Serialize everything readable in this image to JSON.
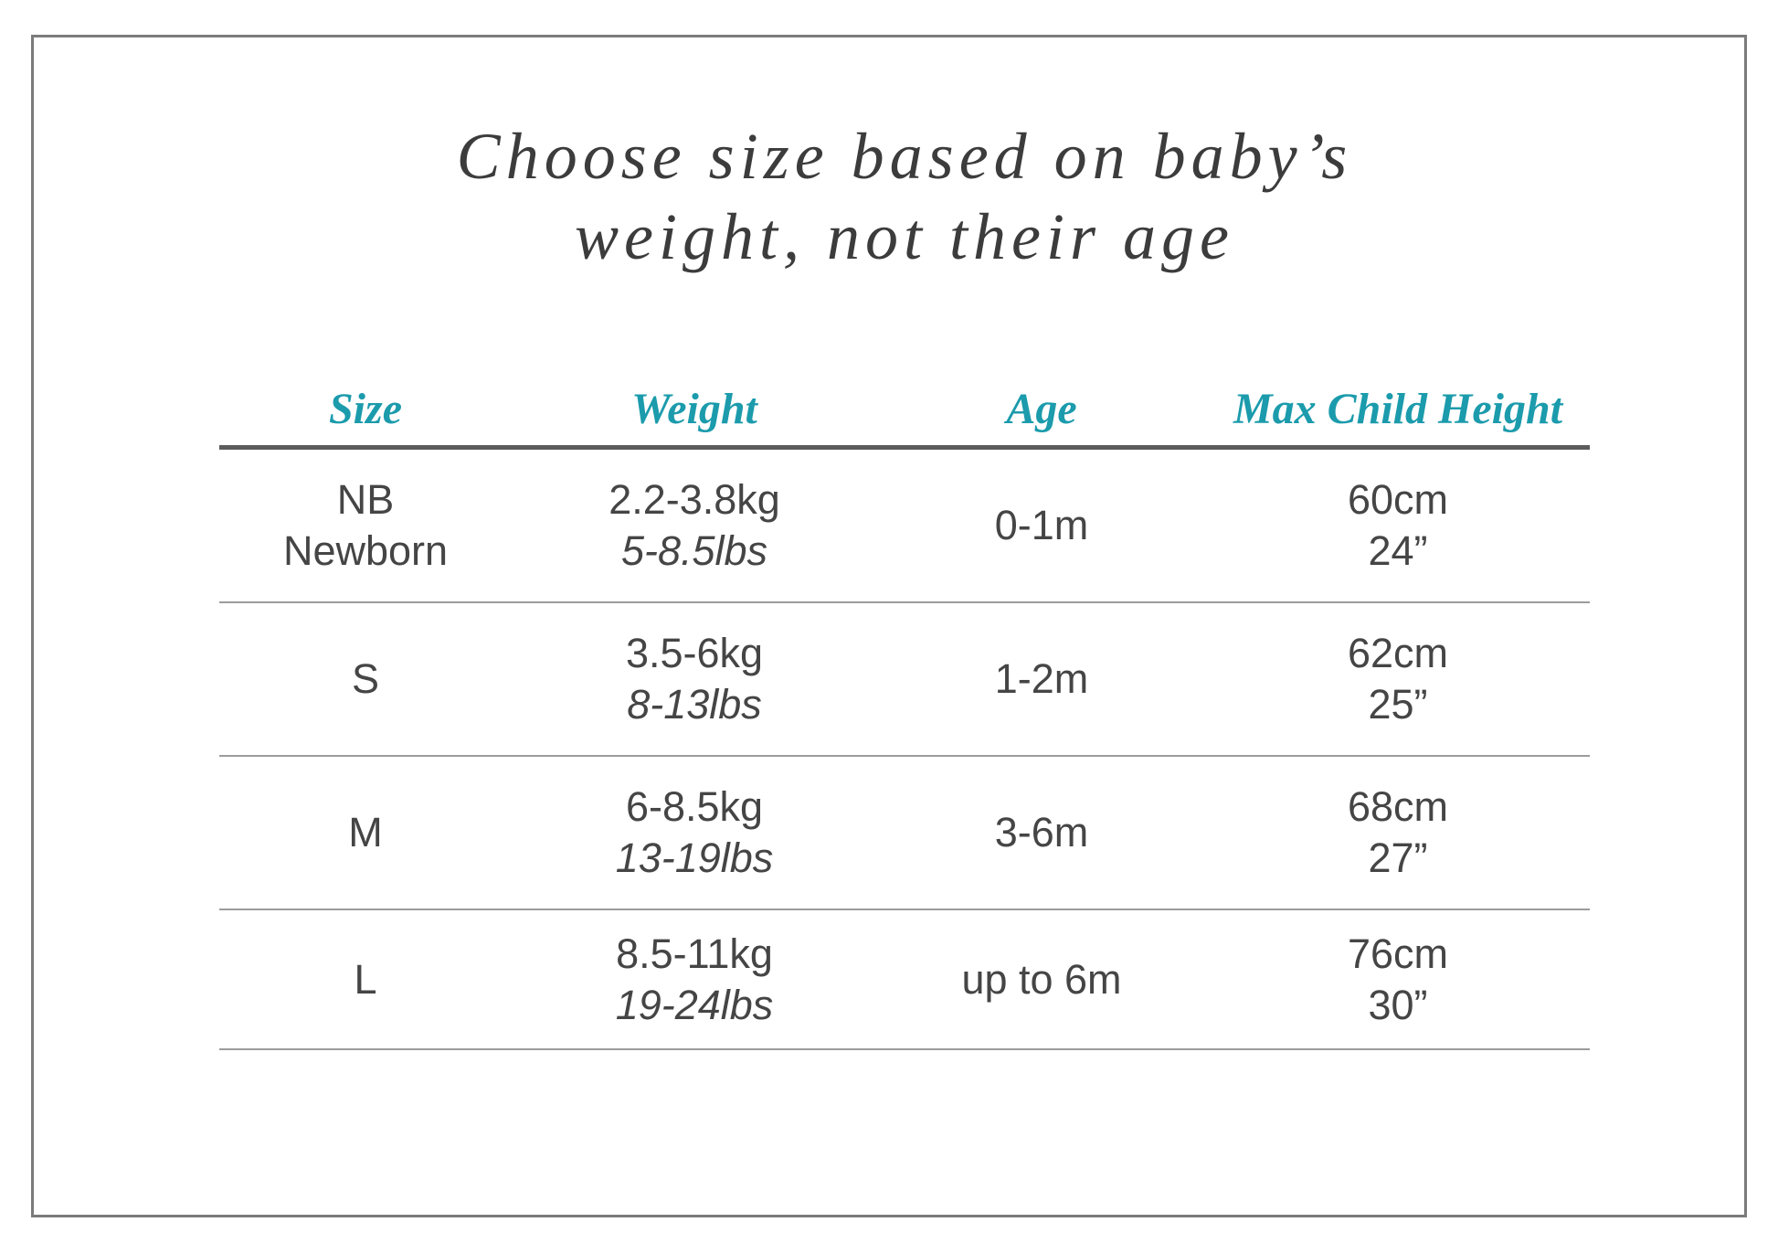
{
  "title": {
    "line1": "Choose size based on baby’s",
    "line2": "weight, not their age"
  },
  "colors": {
    "accent_teal": "#1b9bac",
    "title_text": "#3c3c3c",
    "body_text": "#454545",
    "header_rule": "#5c5c5c",
    "row_rule": "#9c9c9c",
    "outer_border": "#7b7b7b"
  },
  "chart_data": {
    "type": "table",
    "title": "Choose size based on baby’s weight, not their age",
    "columns": [
      "Size",
      "Weight",
      "Age",
      "Max Child Height"
    ],
    "rows": [
      [
        "NB Newborn",
        "2.2-3.8kg / 5-8.5lbs",
        "0-1m",
        "60cm / 24”"
      ],
      [
        "S",
        "3.5-6kg / 8-13lbs",
        "1-2m",
        "62cm / 25”"
      ],
      [
        "M",
        "6-8.5kg / 13-19lbs",
        "3-6m",
        "68cm / 27”"
      ],
      [
        "L",
        "8.5-11kg / 19-24lbs",
        "up to 6m",
        "76cm / 30”"
      ]
    ]
  },
  "table": {
    "headers": [
      "Size",
      "Weight",
      "Age",
      "Max Child Height"
    ],
    "rows": [
      {
        "size1": "NB",
        "size2": "Newborn",
        "kg": "2.2-3.8kg",
        "lbs": "5-8.5lbs",
        "age": "0-1m",
        "cm": "60cm",
        "inch": "24”"
      },
      {
        "size1": "S",
        "size2": "",
        "kg": "3.5-6kg",
        "lbs": "8-13lbs",
        "age": "1-2m",
        "cm": "62cm",
        "inch": "25”"
      },
      {
        "size1": "M",
        "size2": "",
        "kg": "6-8.5kg",
        "lbs": "13-19lbs",
        "age": "3-6m",
        "cm": "68cm",
        "inch": "27”"
      },
      {
        "size1": "L",
        "size2": "",
        "kg": "8.5-11kg",
        "lbs": "19-24lbs",
        "age": "up to 6m",
        "cm": "76cm",
        "inch": "30”"
      }
    ]
  }
}
